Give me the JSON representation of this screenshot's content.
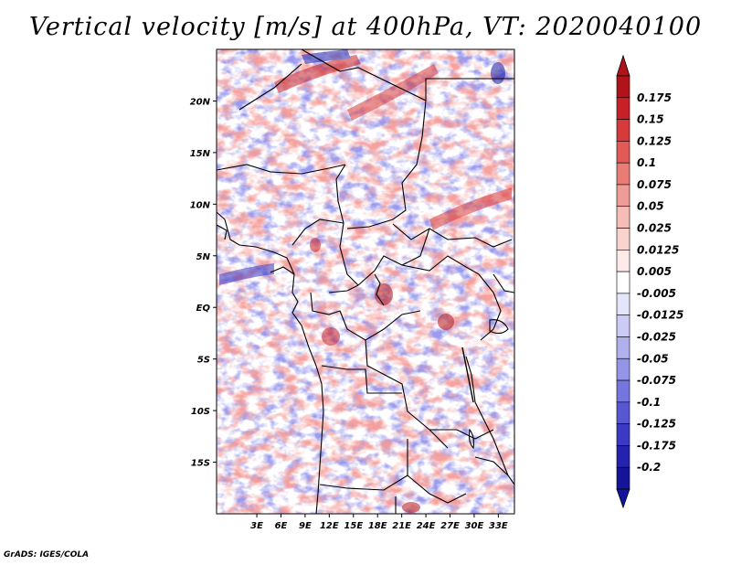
{
  "title": "Vertical velocity [m/s] at 400hPa, VT: 2020040100",
  "credit": "GrADS: IGES/COLA",
  "map": {
    "lon_range": [
      -2,
      35
    ],
    "lat_range": [
      -20,
      25
    ],
    "lat_ticks": [
      {
        "value": 20,
        "label": "20N"
      },
      {
        "value": 15,
        "label": "15N"
      },
      {
        "value": 10,
        "label": "10N"
      },
      {
        "value": 5,
        "label": "5N"
      },
      {
        "value": 0,
        "label": "EQ"
      },
      {
        "value": -5,
        "label": "5S"
      },
      {
        "value": -10,
        "label": "10S"
      },
      {
        "value": -15,
        "label": "15S"
      }
    ],
    "lon_ticks": [
      {
        "value": 3,
        "label": "3E"
      },
      {
        "value": 6,
        "label": "6E"
      },
      {
        "value": 9,
        "label": "9E"
      },
      {
        "value": 12,
        "label": "12E"
      },
      {
        "value": 15,
        "label": "15E"
      },
      {
        "value": 18,
        "label": "18E"
      },
      {
        "value": 21,
        "label": "21E"
      },
      {
        "value": 24,
        "label": "24E"
      },
      {
        "value": 27,
        "label": "27E"
      },
      {
        "value": 30,
        "label": "30E"
      },
      {
        "value": 33,
        "label": "33E"
      }
    ]
  },
  "colorbar": {
    "levels": [
      {
        "label": "0.175",
        "color": "#b0141a"
      },
      {
        "label": "0.15",
        "color": "#c72027"
      },
      {
        "label": "0.125",
        "color": "#d73a3a"
      },
      {
        "label": "0.1",
        "color": "#e25a55"
      },
      {
        "label": "0.075",
        "color": "#ea7c76"
      },
      {
        "label": "0.05",
        "color": "#f09c96"
      },
      {
        "label": "0.025",
        "color": "#f6bcb6"
      },
      {
        "label": "0.0125",
        "color": "#f9d4cf"
      },
      {
        "label": "0.005",
        "color": "#fcebe8"
      },
      {
        "label": "-0.005",
        "color": "#ffffff"
      },
      {
        "label": "-0.0125",
        "color": "#e4e4fa"
      },
      {
        "label": "-0.025",
        "color": "#cbcbf5"
      },
      {
        "label": "-0.05",
        "color": "#b0b0ef"
      },
      {
        "label": "-0.075",
        "color": "#9494e8"
      },
      {
        "label": "-0.1",
        "color": "#7575df"
      },
      {
        "label": "-0.125",
        "color": "#5757d3"
      },
      {
        "label": "-0.175",
        "color": "#3a3ac4"
      },
      {
        "label": "-0.2",
        "color": "#2323b0"
      },
      {
        "label": "",
        "color": "#14149a"
      }
    ]
  }
}
